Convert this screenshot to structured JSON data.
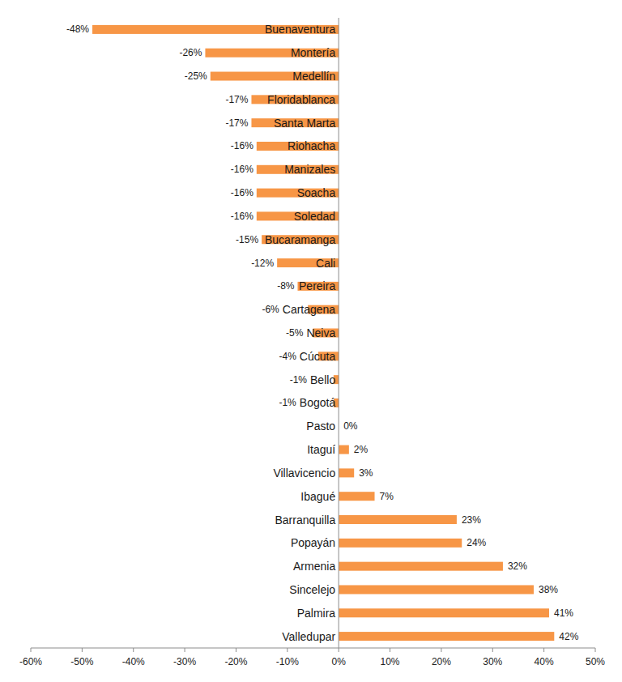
{
  "chart_data": {
    "type": "bar",
    "orientation": "horizontal",
    "categories": [
      "Buenaventura",
      "Montería",
      "Medellín",
      "Floridablanca",
      "Santa Marta",
      "Riohacha",
      "Manizales",
      "Soacha",
      "Soledad",
      "Bucaramanga",
      "Cali",
      "Pereira",
      "Cartagena",
      "Neiva",
      "Cúcuta",
      "Bello",
      "Bogotá",
      "Pasto",
      "Itaguí",
      "Villavicencio",
      "Ibagué",
      "Barranquilla",
      "Popayán",
      "Armenia",
      "Sincelejo",
      "Palmira",
      "Valledupar"
    ],
    "values": [
      -48,
      -26,
      -25,
      -17,
      -17,
      -16,
      -16,
      -16,
      -16,
      -15,
      -12,
      -8,
      -6,
      -5,
      -4,
      -1,
      -1,
      0,
      2,
      3,
      7,
      23,
      24,
      32,
      38,
      41,
      42
    ],
    "value_labels": [
      "-48%",
      "-26%",
      "-25%",
      "-17%",
      "-17%",
      "-16%",
      "-16%",
      "-16%",
      "-16%",
      "-15%",
      "-12%",
      "-8%",
      "-6%",
      "-5%",
      "-4%",
      "-1%",
      "-1%",
      "0%",
      "2%",
      "3%",
      "7%",
      "23%",
      "24%",
      "32%",
      "38%",
      "41%",
      "42%"
    ],
    "color": "#f79646",
    "xlim": [
      -60,
      50
    ],
    "xticks": [
      {
        "value": -60,
        "label": "-60%"
      },
      {
        "value": -50,
        "label": "-50%"
      },
      {
        "value": -40,
        "label": "-40%"
      },
      {
        "value": -30,
        "label": "-30%"
      },
      {
        "value": -20,
        "label": "-20%"
      },
      {
        "value": -10,
        "label": "-10%"
      },
      {
        "value": 0,
        "label": "0%"
      },
      {
        "value": 10,
        "label": "10%"
      },
      {
        "value": 20,
        "label": "20%"
      },
      {
        "value": 30,
        "label": "30%"
      },
      {
        "value": 40,
        "label": "40%"
      },
      {
        "value": 50,
        "label": "50%"
      }
    ],
    "data_labels": true,
    "grid": false
  }
}
